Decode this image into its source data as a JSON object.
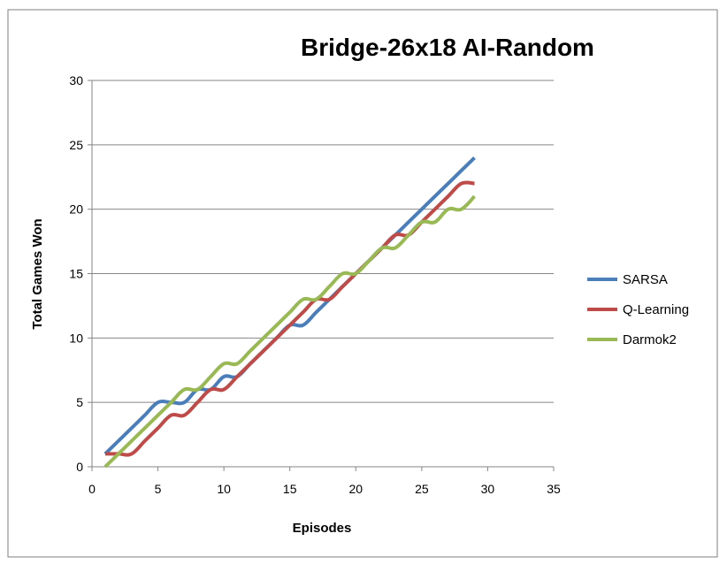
{
  "chart_data": {
    "type": "line",
    "title": "Bridge-26x18 AI-Random",
    "xlabel": "Episodes",
    "ylabel": "Total Games Won",
    "xlim": [
      0,
      35
    ],
    "ylim": [
      0,
      30
    ],
    "xticks": [
      0,
      5,
      10,
      15,
      20,
      25,
      30,
      35
    ],
    "yticks": [
      0,
      5,
      10,
      15,
      20,
      25,
      30
    ],
    "grid": "horizontal",
    "legend_position": "right",
    "series": [
      {
        "name": "SARSA",
        "color": "#4a7ebb",
        "x": [
          1,
          2,
          3,
          4,
          5,
          6,
          7,
          8,
          9,
          10,
          11,
          12,
          13,
          14,
          15,
          16,
          17,
          18,
          19,
          20,
          21,
          22,
          23,
          24,
          25,
          26,
          27,
          28,
          29
        ],
        "y": [
          1,
          2,
          3,
          4,
          5,
          5,
          5,
          6,
          6,
          7,
          7,
          8,
          9,
          10,
          11,
          11,
          12,
          13,
          14,
          15,
          16,
          17,
          18,
          19,
          20,
          21,
          22,
          23,
          24
        ]
      },
      {
        "name": "Q-Learning",
        "color": "#be4b48",
        "x": [
          1,
          2,
          3,
          4,
          5,
          6,
          7,
          8,
          9,
          10,
          11,
          12,
          13,
          14,
          15,
          16,
          17,
          18,
          19,
          20,
          21,
          22,
          23,
          24,
          25,
          26,
          27,
          28,
          29
        ],
        "y": [
          1,
          1,
          1,
          2,
          3,
          4,
          4,
          5,
          6,
          6,
          7,
          8,
          9,
          10,
          11,
          12,
          13,
          13,
          14,
          15,
          16,
          17,
          18,
          18,
          19,
          20,
          21,
          22,
          22
        ]
      },
      {
        "name": "Darmok2",
        "color": "#98b954",
        "x": [
          1,
          2,
          3,
          4,
          5,
          6,
          7,
          8,
          9,
          10,
          11,
          12,
          13,
          14,
          15,
          16,
          17,
          18,
          19,
          20,
          21,
          22,
          23,
          24,
          25,
          26,
          27,
          28,
          29
        ],
        "y": [
          0,
          1,
          2,
          3,
          4,
          5,
          6,
          6,
          7,
          8,
          8,
          9,
          10,
          11,
          12,
          13,
          13,
          14,
          15,
          15,
          16,
          17,
          17,
          18,
          19,
          19,
          20,
          20,
          21
        ]
      }
    ]
  }
}
